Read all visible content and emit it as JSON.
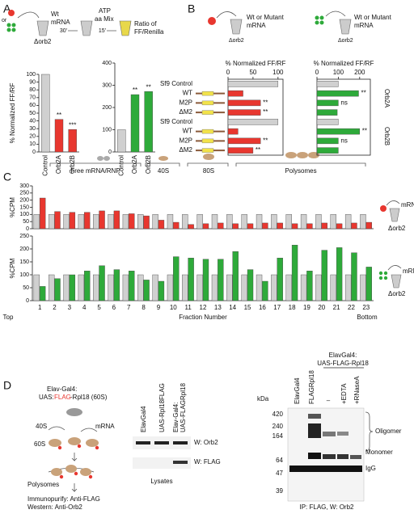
{
  "panel_labels": [
    "A",
    "B",
    "C",
    "D"
  ],
  "panel_a": {
    "or": "or",
    "wt": "Wt",
    "mrna": "mRNA",
    "strain": "Δorb2",
    "time1": "30'",
    "atp": "ATP",
    "aa_mix": "aa Mix",
    "time2": "15'",
    "ratio1": "Ratio of",
    "ratio2": "FF/Renilla"
  },
  "panel_b": {
    "left_mrna1": "Wt or Mutant",
    "left_mrna2": "mRNA",
    "left_strain": "Δorb2",
    "right_mrna1": "Wt or Mutant",
    "right_mrna2": "mRNA",
    "right_strain": "Δorb2"
  },
  "panel_c": {
    "regions": [
      "Free mRNA/RNP",
      "40S",
      "80S",
      "Polysomes"
    ],
    "top_label": "Top",
    "bottom_label": "Bottom",
    "mrna": [
      "mRNA",
      "mRNA"
    ],
    "strain": [
      "Δorb2",
      "Δorb2"
    ]
  },
  "panel_d": {
    "driver": "Elav-Gal4:",
    "uas": "UAS:",
    "flag": "FLAG",
    "rpl": "-Rpl18 (60S)",
    "s40": "40S",
    "s60": "60S",
    "mrna": "mRNA",
    "polysomes": "Polysomes",
    "immuno": "Immunopurify: Anti-FLAG",
    "western": "Western: Anti-Orb2",
    "lysate_lanes": [
      "ElavGal4",
      "UAS-Rpl18FLAG",
      "Elav-Gal4:",
      "UAS-FLAGRpl18"
    ],
    "lysate_blots": [
      "W: Orb2",
      "W: FLAG"
    ],
    "lysates": "Lysates",
    "ip_header": [
      "ElavGal4:",
      "UAS-FLAG-Rpl18"
    ],
    "ip_lanes": [
      "ElavGal4",
      "FLAGRpl18",
      "–",
      "+EDTA",
      "+RNaseA"
    ],
    "kda": "kDa",
    "markers": [
      "420",
      "240",
      "164",
      "64",
      "47",
      "39"
    ],
    "bands": [
      "Oligomer",
      "Monomer",
      "IgG"
    ],
    "ip_caption": "IP: FLAG, W: Orb2"
  },
  "chart_data": [
    {
      "type": "bar",
      "y_label": "% Normalized FF/RF",
      "categories": [
        "Control",
        "Orb2A",
        "Orb2B"
      ],
      "values": [
        100,
        42,
        29
      ],
      "colors": [
        "#d0d0d0",
        "#e8372f",
        "#e8372f"
      ],
      "annotations": [
        null,
        "**",
        "***"
      ],
      "ylim": [
        0,
        100
      ],
      "yticks": [
        0,
        10,
        20,
        30,
        40,
        50,
        60,
        70,
        80,
        90,
        100
      ]
    },
    {
      "type": "bar",
      "categories": [
        "Control",
        "Orb2A",
        "Orb2B"
      ],
      "values": [
        100,
        258,
        272
      ],
      "colors": [
        "#d0d0d0",
        "#2eaa3a",
        "#2eaa3a"
      ],
      "annotations": [
        null,
        "**",
        "**"
      ],
      "ylim": [
        0,
        400
      ],
      "yticks": [
        0,
        100,
        200,
        300,
        400
      ]
    },
    {
      "type": "bar",
      "horizontal": true,
      "title": "% Normalized FF/RF",
      "categories": [
        "Sf9 Control",
        "WT",
        "M2P",
        "ΔM2",
        "Sf9 Control",
        "WT",
        "M2P",
        "ΔM2"
      ],
      "values": [
        100,
        30,
        65,
        65,
        100,
        20,
        65,
        50
      ],
      "colors": [
        "#d0d0d0",
        "#e8372f",
        "#e8372f",
        "#e8372f",
        "#d0d0d0",
        "#e8372f",
        "#e8372f",
        "#e8372f"
      ],
      "annotations": [
        null,
        null,
        "**",
        "**",
        null,
        null,
        "**",
        "**"
      ],
      "xlim": [
        0,
        110
      ],
      "xticks": [
        0,
        50,
        100
      ]
    },
    {
      "type": "bar",
      "horizontal": true,
      "title": "% Normalized FF/RF",
      "categories": [
        null,
        null,
        null,
        null,
        null,
        null,
        null,
        null
      ],
      "values": [
        100,
        195,
        100,
        95,
        100,
        200,
        100,
        100
      ],
      "colors": [
        "#d0d0d0",
        "#2eaa3a",
        "#2eaa3a",
        "#2eaa3a",
        "#d0d0d0",
        "#2eaa3a",
        "#2eaa3a",
        "#2eaa3a"
      ],
      "annotations": [
        null,
        "**",
        "ns",
        null,
        null,
        "**",
        "ns",
        null
      ],
      "group_labels": [
        "Orb2A",
        "Orb2B"
      ],
      "xlim": [
        0,
        250
      ],
      "xticks": [
        0,
        100,
        200
      ]
    },
    {
      "type": "bar",
      "y_label": "%CPM",
      "series": [
        {
          "color": "#d0d0d0",
          "values": [
            100,
            100,
            100,
            100,
            100,
            100,
            100,
            100,
            100,
            100,
            100,
            100,
            100,
            100,
            100,
            100,
            100,
            100,
            100,
            100,
            100,
            100,
            100
          ]
        },
        {
          "color": "#e8372f",
          "values": [
            215,
            120,
            115,
            115,
            125,
            125,
            105,
            90,
            60,
            45,
            30,
            35,
            40,
            35,
            35,
            40,
            40,
            35,
            35,
            40,
            35,
            40,
            45
          ]
        }
      ],
      "ylim": [
        0,
        300
      ],
      "yticks": [
        0,
        50,
        100,
        150,
        200,
        250,
        300
      ]
    },
    {
      "type": "bar",
      "y_label": "%CPM",
      "x_label": "Fraction Number",
      "categories": [
        1,
        2,
        3,
        4,
        5,
        6,
        7,
        8,
        9,
        10,
        11,
        12,
        13,
        14,
        15,
        16,
        17,
        18,
        19,
        20,
        21,
        22,
        23
      ],
      "series": [
        {
          "color": "#d0d0d0",
          "values": [
            100,
            100,
            100,
            100,
            100,
            100,
            100,
            100,
            100,
            100,
            100,
            100,
            100,
            100,
            100,
            100,
            100,
            100,
            100,
            100,
            100,
            100,
            100
          ]
        },
        {
          "color": "#2eaa3a",
          "values": [
            55,
            85,
            100,
            115,
            135,
            120,
            115,
            80,
            75,
            170,
            165,
            160,
            160,
            190,
            120,
            75,
            165,
            215,
            115,
            195,
            205,
            185,
            130
          ]
        }
      ],
      "ylim": [
        0,
        250
      ],
      "yticks": [
        0,
        50,
        100,
        150,
        200,
        250
      ]
    }
  ]
}
